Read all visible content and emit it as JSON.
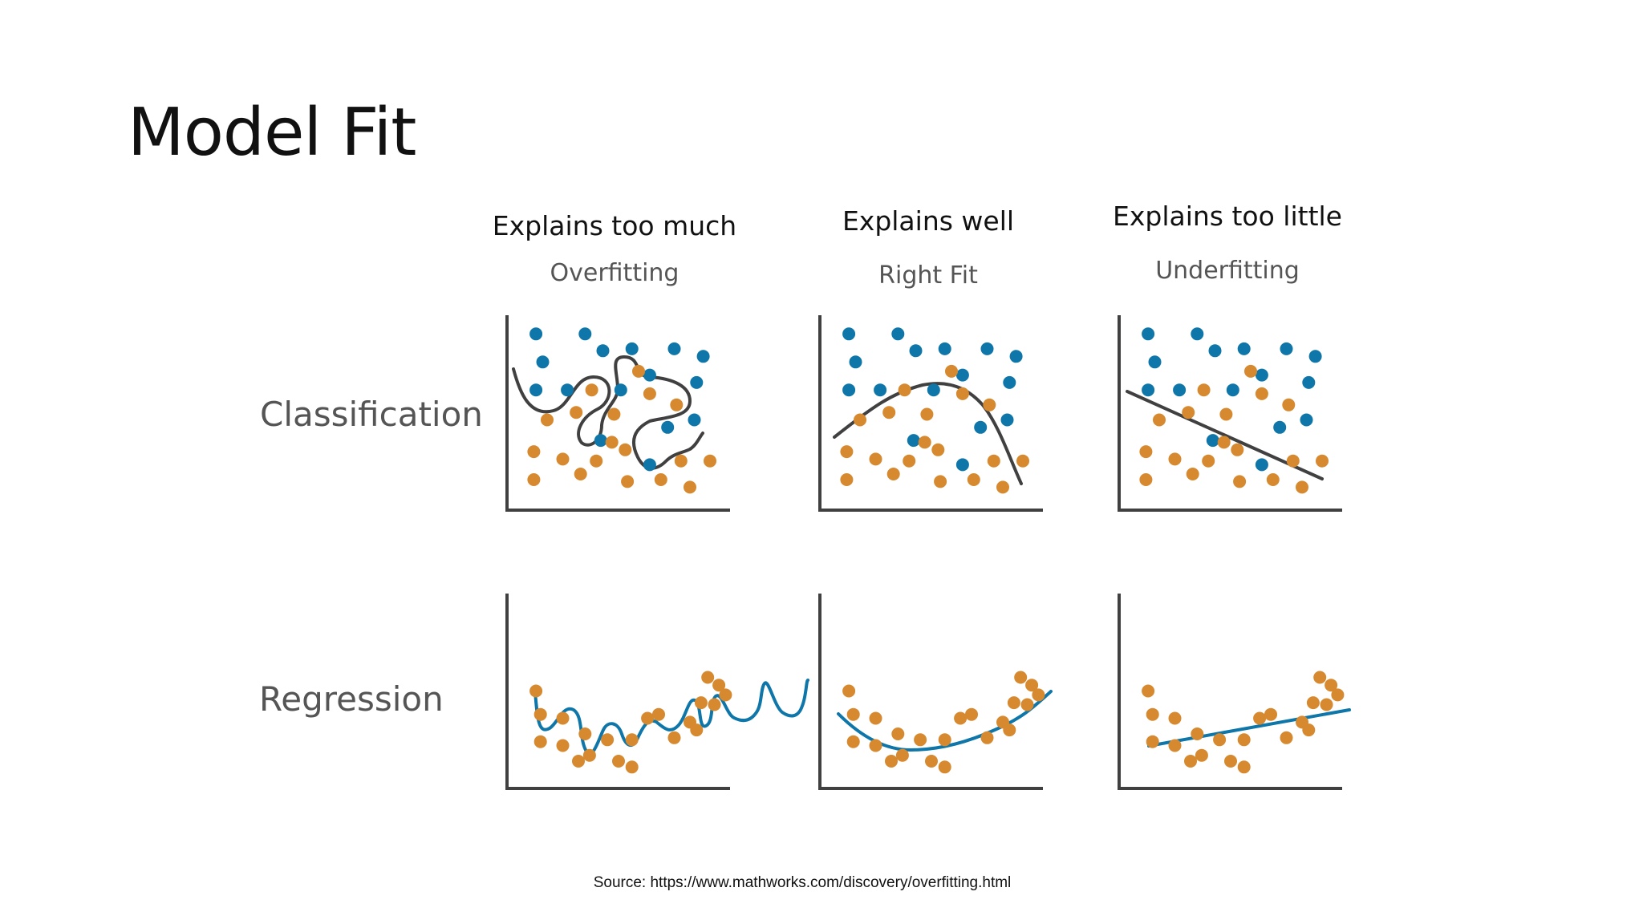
{
  "slide": {
    "title": "Model Fit",
    "source": "Source: https://www.mathworks.com/discovery/overfitting.html"
  },
  "columns": [
    {
      "heading": "Explains too much",
      "subheading": "Overfitting"
    },
    {
      "heading": "Explains well",
      "subheading": "Right Fit"
    },
    {
      "heading": "Explains too little",
      "subheading": "Underfitting"
    }
  ],
  "rows": [
    {
      "label": "Classification"
    },
    {
      "label": "Regression"
    }
  ],
  "colors": {
    "class_a": "#0e76a8",
    "class_b": "#d6892e",
    "boundary": "#404040",
    "regression_line": "#0e76a8",
    "axis": "#404040"
  },
  "chart_data": {
    "type": "scatter",
    "classification_points": {
      "class_a": [
        [
          0.13,
          0.9
        ],
        [
          0.35,
          0.9
        ],
        [
          0.16,
          0.75
        ],
        [
          0.43,
          0.81
        ],
        [
          0.56,
          0.82
        ],
        [
          0.75,
          0.82
        ],
        [
          0.88,
          0.78
        ],
        [
          0.64,
          0.68
        ],
        [
          0.85,
          0.64
        ],
        [
          0.13,
          0.6
        ],
        [
          0.27,
          0.6
        ],
        [
          0.51,
          0.6
        ],
        [
          0.72,
          0.4
        ],
        [
          0.42,
          0.33
        ],
        [
          0.84,
          0.44
        ],
        [
          0.64,
          0.2
        ]
      ],
      "class_b": [
        [
          0.59,
          0.7
        ],
        [
          0.38,
          0.6
        ],
        [
          0.64,
          0.58
        ],
        [
          0.76,
          0.52
        ],
        [
          0.18,
          0.44
        ],
        [
          0.31,
          0.48
        ],
        [
          0.48,
          0.47
        ],
        [
          0.12,
          0.27
        ],
        [
          0.25,
          0.23
        ],
        [
          0.4,
          0.22
        ],
        [
          0.47,
          0.32
        ],
        [
          0.53,
          0.28
        ],
        [
          0.78,
          0.22
        ],
        [
          0.91,
          0.22
        ],
        [
          0.12,
          0.12
        ],
        [
          0.33,
          0.15
        ],
        [
          0.54,
          0.11
        ],
        [
          0.69,
          0.12
        ],
        [
          0.82,
          0.08
        ]
      ]
    },
    "regression_points": [
      [
        0.13,
        0.5
      ],
      [
        0.15,
        0.38
      ],
      [
        0.25,
        0.36
      ],
      [
        0.35,
        0.28
      ],
      [
        0.15,
        0.24
      ],
      [
        0.25,
        0.22
      ],
      [
        0.32,
        0.14
      ],
      [
        0.37,
        0.17
      ],
      [
        0.5,
        0.14
      ],
      [
        0.56,
        0.11
      ],
      [
        0.45,
        0.25
      ],
      [
        0.56,
        0.25
      ],
      [
        0.63,
        0.36
      ],
      [
        0.68,
        0.38
      ],
      [
        0.75,
        0.26
      ],
      [
        0.82,
        0.34
      ],
      [
        0.87,
        0.44
      ],
      [
        0.85,
        0.3
      ],
      [
        0.93,
        0.43
      ],
      [
        0.98,
        0.48
      ],
      [
        0.9,
        0.57
      ],
      [
        0.95,
        0.53
      ]
    ]
  }
}
